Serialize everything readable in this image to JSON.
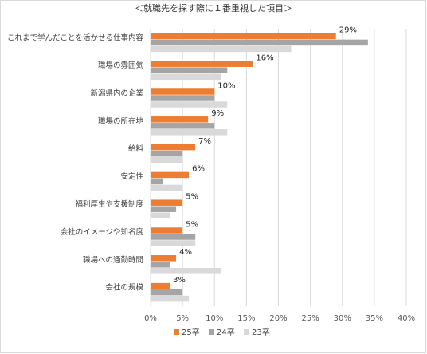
{
  "chart_data": {
    "type": "bar",
    "orientation": "horizontal",
    "title": "＜就職先を探す際に１番重視した項目＞",
    "categories": [
      "これまで学んだことを活かせる仕事内容",
      "職場の雰囲気",
      "新潟県内の企業",
      "職場の所在地",
      "給料",
      "安定性",
      "福利厚生や支援制度",
      "会社のイメージや知名度",
      "職場への通勤時間",
      "会社の規模"
    ],
    "series": [
      {
        "name": "25卒",
        "color": "#ed7d31",
        "values": [
          29,
          16,
          10,
          9,
          7,
          6,
          5,
          5,
          4,
          3
        ]
      },
      {
        "name": "24卒",
        "color": "#a5a5a5",
        "values": [
          34,
          12,
          10,
          10,
          5,
          2,
          4,
          7,
          3,
          5
        ]
      },
      {
        "name": "23卒",
        "color": "#d9d9d9",
        "values": [
          22,
          11,
          12,
          12,
          5,
          5,
          3,
          7,
          11,
          6
        ]
      }
    ],
    "data_labels": [
      "29%",
      "16%",
      "10%",
      "9%",
      "7%",
      "6%",
      "5%",
      "5%",
      "4%",
      "3%"
    ],
    "xlim": [
      0,
      40
    ],
    "xticks": [
      0,
      5,
      10,
      15,
      20,
      25,
      30,
      35,
      40
    ],
    "tick_format": "%",
    "grid": true,
    "legend_position": "bottom"
  }
}
